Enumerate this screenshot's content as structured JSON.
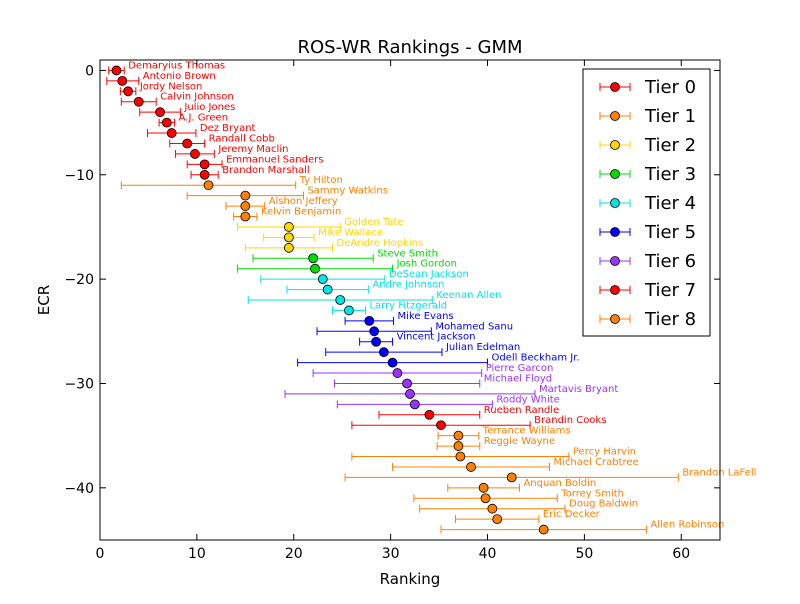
{
  "chart_data": {
    "type": "scatter",
    "title": "ROS-WR Rankings - GMM",
    "xlabel": "Ranking",
    "ylabel": "ECR",
    "xlim": [
      0,
      64
    ],
    "ylim": [
      -45,
      1
    ],
    "xticks": [
      "0",
      "10",
      "20",
      "30",
      "40",
      "50",
      "60"
    ],
    "yticks": [
      "0",
      "−10",
      "−20",
      "−30",
      "−40"
    ],
    "legend_position": "top-right",
    "grid": false,
    "tiers": [
      {
        "name": "Tier 0",
        "color": "#ff0000"
      },
      {
        "name": "Tier 1",
        "color": "#ff8000"
      },
      {
        "name": "Tier 2",
        "color": "#ffd700"
      },
      {
        "name": "Tier 3",
        "color": "#00dd00"
      },
      {
        "name": "Tier 4",
        "color": "#00e5e5"
      },
      {
        "name": "Tier 5",
        "color": "#0000ff"
      },
      {
        "name": "Tier 6",
        "color": "#9933ff"
      },
      {
        "name": "Tier 7",
        "color": "#ff0000"
      },
      {
        "name": "Tier 8",
        "color": "#ff8000"
      }
    ],
    "points": [
      {
        "player": "Demaryius Thomas",
        "tier": 0,
        "ecr": 0,
        "x": 1.7,
        "lo": 0.9,
        "hi": 2.5
      },
      {
        "player": "Antonio Brown",
        "tier": 0,
        "ecr": -1,
        "x": 2.3,
        "lo": 0.7,
        "hi": 4.0
      },
      {
        "player": "Jordy Nelson",
        "tier": 0,
        "ecr": -2,
        "x": 2.9,
        "lo": 2.1,
        "hi": 3.7
      },
      {
        "player": "Calvin Johnson",
        "tier": 0,
        "ecr": -3,
        "x": 4.0,
        "lo": 2.2,
        "hi": 5.8
      },
      {
        "player": "Julio Jones",
        "tier": 0,
        "ecr": -4,
        "x": 6.2,
        "lo": 4.1,
        "hi": 8.3
      },
      {
        "player": "A.J. Green",
        "tier": 0,
        "ecr": -5,
        "x": 6.9,
        "lo": 6.1,
        "hi": 7.7
      },
      {
        "player": "Dez Bryant",
        "tier": 0,
        "ecr": -6,
        "x": 7.4,
        "lo": 4.9,
        "hi": 9.9
      },
      {
        "player": "Randall Cobb",
        "tier": 0,
        "ecr": -7,
        "x": 9.0,
        "lo": 7.2,
        "hi": 10.8
      },
      {
        "player": "Jeremy Maclin",
        "tier": 0,
        "ecr": -8,
        "x": 9.8,
        "lo": 7.8,
        "hi": 11.8
      },
      {
        "player": "Emmanuel Sanders",
        "tier": 0,
        "ecr": -9,
        "x": 10.8,
        "lo": 9.0,
        "hi": 12.6
      },
      {
        "player": "Brandon Marshall",
        "tier": 0,
        "ecr": -10,
        "x": 10.8,
        "lo": 9.4,
        "hi": 12.2
      },
      {
        "player": "Ty Hilton",
        "tier": 1,
        "ecr": -11,
        "x": 11.2,
        "lo": 2.2,
        "hi": 20.2
      },
      {
        "player": "Sammy Watkins",
        "tier": 1,
        "ecr": -12,
        "x": 15.0,
        "lo": 9.0,
        "hi": 21.0
      },
      {
        "player": "Alshon Jeffery",
        "tier": 1,
        "ecr": -13,
        "x": 15.0,
        "lo": 13.0,
        "hi": 17.0
      },
      {
        "player": "Kelvin Benjamin",
        "tier": 1,
        "ecr": -14,
        "x": 15.0,
        "lo": 13.8,
        "hi": 16.2
      },
      {
        "player": "Golden Tate",
        "tier": 2,
        "ecr": -15,
        "x": 19.5,
        "lo": 14.2,
        "hi": 24.8
      },
      {
        "player": "Mike Wallace",
        "tier": 2,
        "ecr": -16,
        "x": 19.5,
        "lo": 16.9,
        "hi": 22.1
      },
      {
        "player": "DeAndre Hopkins",
        "tier": 2,
        "ecr": -17,
        "x": 19.5,
        "lo": 15.0,
        "hi": 24.0
      },
      {
        "player": "Steve Smith",
        "tier": 3,
        "ecr": -18,
        "x": 22.0,
        "lo": 15.8,
        "hi": 28.2
      },
      {
        "player": "Josh Gordon",
        "tier": 3,
        "ecr": -19,
        "x": 22.2,
        "lo": 14.2,
        "hi": 30.2
      },
      {
        "player": "DeSean Jackson",
        "tier": 4,
        "ecr": -20,
        "x": 23.0,
        "lo": 16.6,
        "hi": 29.4
      },
      {
        "player": "Andre Johnson",
        "tier": 4,
        "ecr": -21,
        "x": 23.5,
        "lo": 19.3,
        "hi": 27.7
      },
      {
        "player": "Keenan Allen",
        "tier": 4,
        "ecr": -22,
        "x": 24.8,
        "lo": 15.3,
        "hi": 34.3
      },
      {
        "player": "Larry Fitzgerald",
        "tier": 4,
        "ecr": -23,
        "x": 25.7,
        "lo": 24.0,
        "hi": 27.4
      },
      {
        "player": "Mike Evans",
        "tier": 5,
        "ecr": -24,
        "x": 27.8,
        "lo": 25.3,
        "hi": 30.3
      },
      {
        "player": "Mohamed Sanu",
        "tier": 5,
        "ecr": -25,
        "x": 28.3,
        "lo": 22.4,
        "hi": 34.2
      },
      {
        "player": "Vincent Jackson",
        "tier": 5,
        "ecr": -26,
        "x": 28.5,
        "lo": 26.8,
        "hi": 30.2
      },
      {
        "player": "Julian Edelman",
        "tier": 5,
        "ecr": -27,
        "x": 29.3,
        "lo": 23.3,
        "hi": 35.3
      },
      {
        "player": "Odell Beckham Jr.",
        "tier": 5,
        "ecr": -28,
        "x": 30.2,
        "lo": 20.4,
        "hi": 40.0
      },
      {
        "player": "Pierre Garcon",
        "tier": 6,
        "ecr": -29,
        "x": 30.7,
        "lo": 22.0,
        "hi": 39.4
      },
      {
        "player": "Michael Floyd",
        "tier": 6,
        "ecr": -30,
        "x": 31.7,
        "lo": 24.2,
        "hi": 39.2
      },
      {
        "player": "Martavis Bryant",
        "tier": 6,
        "ecr": -31,
        "x": 32.0,
        "lo": 19.1,
        "hi": 44.9
      },
      {
        "player": "Roddy White",
        "tier": 6,
        "ecr": -32,
        "x": 32.5,
        "lo": 24.5,
        "hi": 40.5
      },
      {
        "player": "Rueben Randle",
        "tier": 7,
        "ecr": -33,
        "x": 34.0,
        "lo": 28.8,
        "hi": 39.2
      },
      {
        "player": "Brandin Cooks",
        "tier": 7,
        "ecr": -34,
        "x": 35.2,
        "lo": 26.0,
        "hi": 44.4
      },
      {
        "player": "Terrance Williams",
        "tier": 8,
        "ecr": -35,
        "x": 37.0,
        "lo": 34.9,
        "hi": 39.1
      },
      {
        "player": "Reggie Wayne",
        "tier": 8,
        "ecr": -36,
        "x": 37.0,
        "lo": 34.8,
        "hi": 39.2
      },
      {
        "player": "Percy Harvin",
        "tier": 8,
        "ecr": -37,
        "x": 37.2,
        "lo": 26.0,
        "hi": 48.4
      },
      {
        "player": "Michael Crabtree",
        "tier": 8,
        "ecr": -38,
        "x": 38.3,
        "lo": 30.2,
        "hi": 46.4
      },
      {
        "player": "Brandon LaFell",
        "tier": 8,
        "ecr": -39,
        "x": 42.5,
        "lo": 25.3,
        "hi": 59.7
      },
      {
        "player": "Anquan Boldin",
        "tier": 8,
        "ecr": -40,
        "x": 39.6,
        "lo": 35.9,
        "hi": 43.3
      },
      {
        "player": "Torrey Smith",
        "tier": 8,
        "ecr": -41,
        "x": 39.8,
        "lo": 32.4,
        "hi": 47.2
      },
      {
        "player": "Doug Baldwin",
        "tier": 8,
        "ecr": -42,
        "x": 40.5,
        "lo": 33.0,
        "hi": 48.0
      },
      {
        "player": "Eric Decker",
        "tier": 8,
        "ecr": -43,
        "x": 41.0,
        "lo": 36.7,
        "hi": 45.3
      },
      {
        "player": "Allen Robinson",
        "tier": 8,
        "ecr": -44,
        "x": 45.8,
        "lo": 35.2,
        "hi": 56.4
      }
    ]
  }
}
